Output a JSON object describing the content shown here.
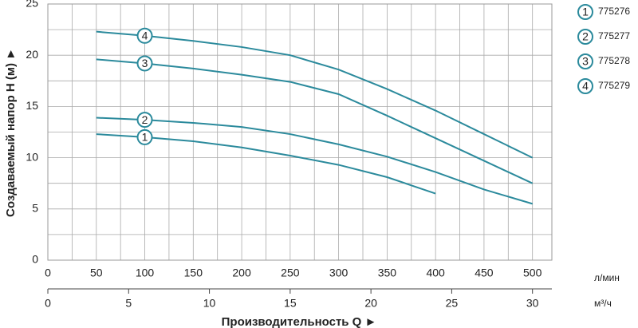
{
  "chart_data": {
    "type": "line",
    "ylabel": "Создаваемый напор H (м) ►",
    "xlabel": "Производительность Q ►",
    "x_unit": "л/мин",
    "x2_unit": "м³/ч",
    "x": [
      50,
      100,
      150,
      200,
      250,
      300,
      350,
      400,
      450,
      500
    ],
    "xlim": [
      0,
      520
    ],
    "xticks": [
      0,
      50,
      100,
      150,
      200,
      250,
      300,
      350,
      400,
      450,
      500
    ],
    "x2lim": [
      0,
      31.2
    ],
    "x2ticks": [
      0,
      5,
      10,
      15,
      20,
      25,
      30
    ],
    "ylim": [
      0,
      25
    ],
    "yticks": [
      0,
      5,
      10,
      15,
      20,
      25
    ],
    "grid": true,
    "series": [
      {
        "name": "775276",
        "marker": "1",
        "color": "#2b8a9c",
        "values": [
          12.3,
          12,
          11.6,
          11,
          10.2,
          9.3,
          8.1,
          6.5,
          null,
          null
        ]
      },
      {
        "name": "775277",
        "marker": "2",
        "color": "#2b8a9c",
        "values": [
          13.9,
          13.7,
          13.4,
          13,
          12.3,
          11.3,
          10.1,
          8.6,
          6.9,
          5.5
        ]
      },
      {
        "name": "775278",
        "marker": "3",
        "color": "#2b8a9c",
        "values": [
          19.6,
          19.2,
          18.7,
          18.1,
          17.4,
          16.2,
          14.1,
          11.9,
          9.7,
          7.5
        ]
      },
      {
        "name": "775279",
        "marker": "4",
        "color": "#2b8a9c",
        "values": [
          22.3,
          21.9,
          21.4,
          20.8,
          20,
          18.6,
          16.7,
          14.6,
          12.3,
          10
        ]
      }
    ]
  }
}
